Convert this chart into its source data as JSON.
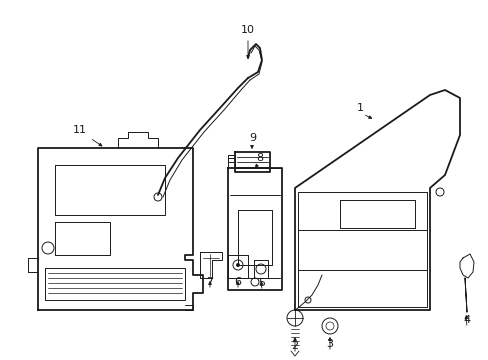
{
  "background_color": "#ffffff",
  "line_color": "#1a1a1a",
  "lw_main": 1.3,
  "lw_thin": 0.7,
  "lw_label": 0.6
}
